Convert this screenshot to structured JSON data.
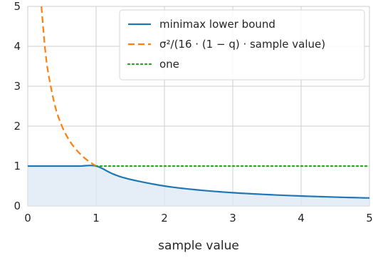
{
  "chart_data": {
    "type": "line",
    "title": "",
    "xlabel": "sample value",
    "ylabel": "",
    "xlim": [
      0,
      5
    ],
    "ylim": [
      0,
      5
    ],
    "xticks": [
      "0",
      "1",
      "2",
      "3",
      "4",
      "5"
    ],
    "yticks": [
      "0",
      "1",
      "2",
      "3",
      "4",
      "5"
    ],
    "grid": true,
    "legend_position": "top-right",
    "series": [
      {
        "name": "minimax lower bound",
        "style": "solid",
        "color": "#1f77b4",
        "x": [
          0,
          0.25,
          0.5,
          0.75,
          1.0,
          1.25,
          1.5,
          2.0,
          2.5,
          3.0,
          3.5,
          4.0,
          4.5,
          5.0
        ],
        "y": [
          1.0,
          1.0,
          1.0,
          1.0,
          1.0,
          0.8,
          0.667,
          0.5,
          0.4,
          0.333,
          0.286,
          0.25,
          0.222,
          0.2
        ]
      },
      {
        "name": "σ²/(16 · (1 − q) · sample value)",
        "style": "dashed",
        "color": "#ff7f0e",
        "x": [
          0.2,
          0.25,
          0.3,
          0.4,
          0.5,
          0.6,
          0.7,
          0.8,
          0.9,
          1.0
        ],
        "y": [
          5.0,
          4.0,
          3.333,
          2.5,
          2.0,
          1.667,
          1.429,
          1.25,
          1.111,
          1.0
        ]
      },
      {
        "name": "one",
        "style": "dotted",
        "color": "#2ca02c",
        "x": [
          1.0,
          5.0
        ],
        "y": [
          1.0,
          1.0
        ]
      }
    ],
    "fill": {
      "under_series": "minimax lower bound",
      "color": "#dce8f4"
    }
  }
}
